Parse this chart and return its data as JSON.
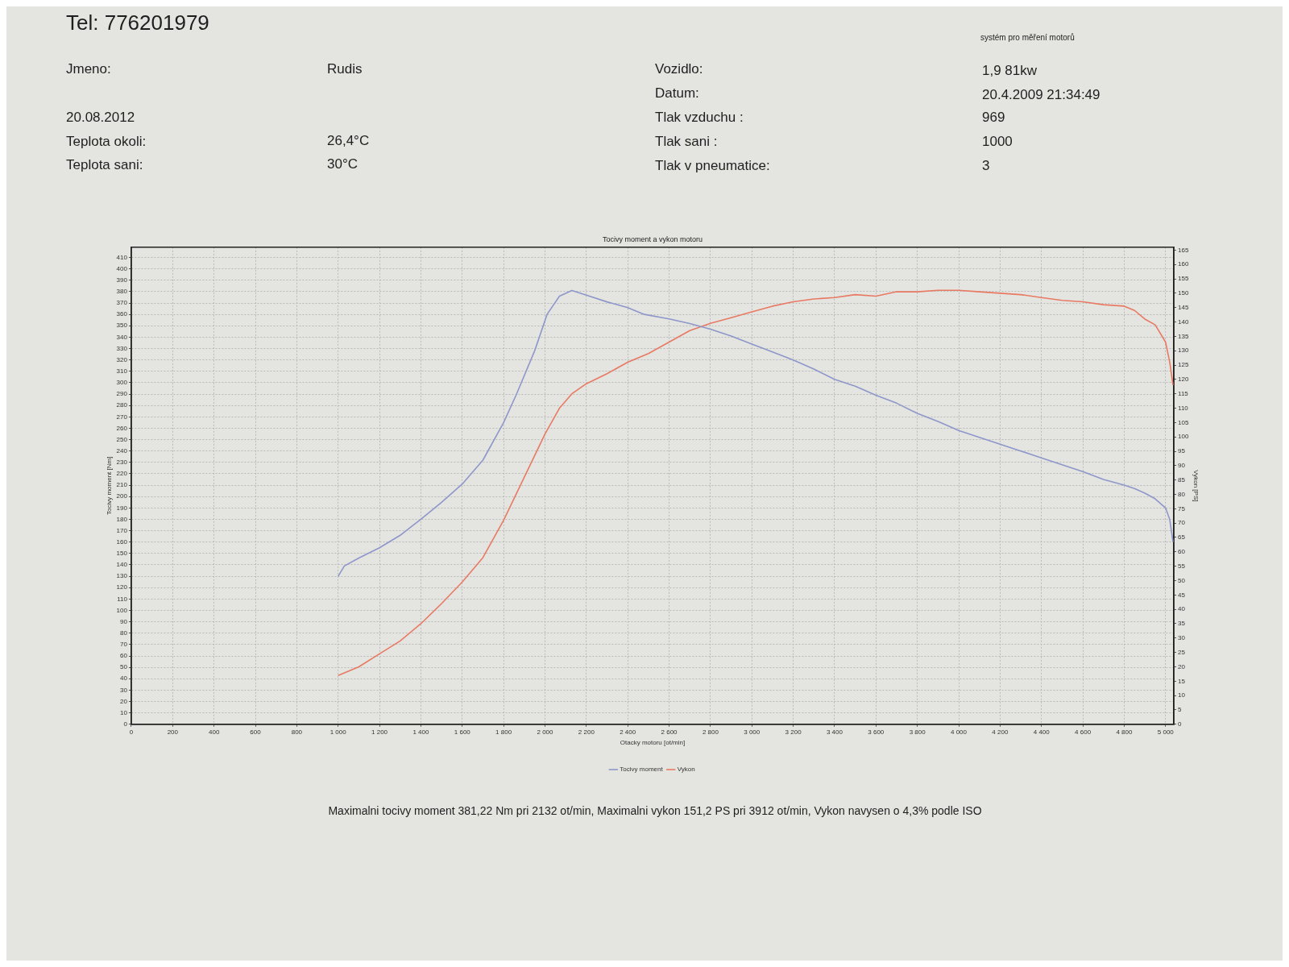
{
  "chart_data": {
    "type": "line",
    "title": "Tocivy moment a vykon motoru",
    "xlabel": "Otacky motoru [ot/min]",
    "ylabel": "Tocivy moment [Nm]",
    "y2label": "Vykon [PS]",
    "annotations": [
      "Tel: 776201979",
      "systém pro měření motorů",
      "Jmeno:",
      "Rudis",
      "Vozidlo:",
      "1,9 81kw",
      "Datum:",
      "20.4.2009 21:34:49",
      "20.08.2012",
      "Tlak vzduchu :",
      "969",
      "Teplota okoli:",
      "26,4°C",
      "Tlak sani :",
      "1000",
      "Teplota sani:",
      "30°C",
      "Tlak v pneumatice:",
      "3",
      "Maximalni tocivy moment 381,22 Nm pri 2132 ot/min,  Maximalni vykon 151,2 PS pri 3912 ot/min,  Vykon navysen o 4,3% podle ISO"
    ],
    "series": [
      {
        "name": "Tocivy moment",
        "color": "#8e97c9",
        "x": [
          1000,
          1030,
          1100,
          1200,
          1300,
          1400,
          1500,
          1600,
          1700,
          1800,
          1860,
          1950,
          2010,
          2070,
          2130,
          2200,
          2300,
          2400,
          2480,
          2600,
          2700,
          2800,
          2900,
          3000,
          3100,
          3200,
          3300,
          3400,
          3500,
          3600,
          3700,
          3800,
          3900,
          4000,
          4100,
          4200,
          4300,
          4400,
          4500,
          4600,
          4700,
          4800,
          4850,
          4900,
          4950,
          5000,
          5020,
          5036
        ],
        "values": [
          130,
          139,
          146,
          155,
          166,
          180,
          195,
          211,
          232,
          265,
          289,
          328,
          360,
          376,
          381,
          377,
          371,
          366,
          360,
          356,
          352,
          347,
          341,
          334,
          327,
          320,
          312,
          303,
          297,
          289,
          282,
          273,
          266,
          258,
          252,
          246,
          240,
          234,
          228,
          222,
          215,
          210,
          207,
          203,
          198,
          190,
          180,
          160
        ]
      },
      {
        "name": "Vykon",
        "color": "#e87a63",
        "axis": "y2",
        "x": [
          1000,
          1100,
          1200,
          1300,
          1400,
          1500,
          1600,
          1700,
          1800,
          1900,
          2000,
          2070,
          2130,
          2200,
          2300,
          2400,
          2500,
          2600,
          2700,
          2800,
          2900,
          3000,
          3100,
          3200,
          3300,
          3400,
          3500,
          3600,
          3700,
          3800,
          3900,
          4000,
          4100,
          4200,
          4300,
          4400,
          4500,
          4600,
          4700,
          4800,
          4850,
          4900,
          4950,
          5000,
          5020,
          5036
        ],
        "values": [
          17,
          20,
          24.5,
          29,
          35,
          42,
          49.5,
          58,
          71,
          86,
          101,
          110,
          115,
          118.5,
          122,
          126,
          129,
          133,
          137,
          139.5,
          141.5,
          143.5,
          145.5,
          147,
          148,
          148.5,
          149.5,
          149,
          150.5,
          150.5,
          151,
          151,
          150.5,
          150,
          149.5,
          148.5,
          147.5,
          147,
          146,
          145.5,
          144,
          141,
          139,
          133,
          126,
          118
        ]
      }
    ],
    "xlim": [
      0,
      5040
    ],
    "xticks": [
      0,
      200,
      400,
      600,
      800,
      {
        "value": 1000,
        "label": "1 000"
      },
      {
        "value": 1200,
        "label": "1 200"
      },
      {
        "value": 1400,
        "label": "1 400"
      },
      {
        "value": 1600,
        "label": "1 600"
      },
      {
        "value": 1800,
        "label": "1 800"
      },
      {
        "value": 2000,
        "label": "2 000"
      },
      {
        "value": 2200,
        "label": "2 200"
      },
      {
        "value": 2400,
        "label": "2 400"
      },
      {
        "value": 2600,
        "label": "2 600"
      },
      {
        "value": 2800,
        "label": "2 800"
      },
      {
        "value": 3000,
        "label": "3 000"
      },
      {
        "value": 3200,
        "label": "3 200"
      },
      {
        "value": 3400,
        "label": "3 400"
      },
      {
        "value": 3600,
        "label": "3 600"
      },
      {
        "value": 3800,
        "label": "3 800"
      },
      {
        "value": 4000,
        "label": "4 000"
      },
      {
        "value": 4200,
        "label": "4 200"
      },
      {
        "value": 4400,
        "label": "4 400"
      },
      {
        "value": 4600,
        "label": "4 600"
      },
      {
        "value": 4800,
        "label": "4 800"
      },
      {
        "value": 5000,
        "label": "5 000"
      }
    ],
    "ylim": [
      0,
      419
    ],
    "yticks": [
      0,
      10,
      20,
      30,
      40,
      50,
      60,
      70,
      80,
      90,
      100,
      110,
      120,
      130,
      140,
      150,
      160,
      170,
      180,
      190,
      200,
      210,
      220,
      230,
      240,
      250,
      260,
      270,
      280,
      290,
      300,
      310,
      320,
      330,
      340,
      350,
      360,
      370,
      380,
      390,
      400,
      410
    ],
    "y2lim": [
      0,
      166
    ],
    "y2ticks": [
      0,
      5,
      10,
      15,
      20,
      25,
      30,
      35,
      40,
      45,
      50,
      55,
      60,
      65,
      70,
      75,
      80,
      85,
      90,
      95,
      100,
      105,
      110,
      115,
      120,
      125,
      130,
      135,
      140,
      145,
      150,
      155,
      160,
      165
    ],
    "grid": true,
    "legend": "bottom",
    "marker": "none"
  }
}
